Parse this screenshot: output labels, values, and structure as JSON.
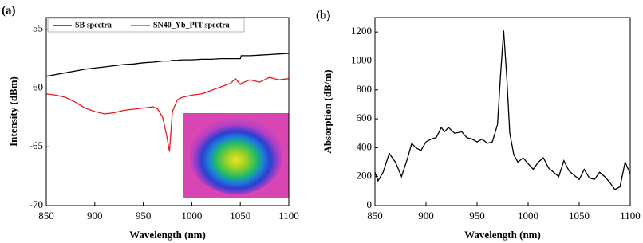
{
  "chart_data": [
    {
      "type": "line",
      "panel_label": "(a)",
      "x_label": "Wavelength (nm)",
      "y_label": "Intensity (dBm)",
      "x": [
        850,
        860,
        870,
        880,
        890,
        900,
        910,
        920,
        930,
        940,
        950,
        960,
        965,
        970,
        974,
        977,
        980,
        985,
        990,
        1000,
        1010,
        1020,
        1030,
        1040,
        1045,
        1050,
        1051,
        1060,
        1070,
        1080,
        1090,
        1100
      ],
      "series": [
        {
          "name": "SB spectra",
          "color": "#000000",
          "values": [
            -59.0,
            -58.85,
            -58.7,
            -58.55,
            -58.4,
            -58.3,
            -58.2,
            -58.1,
            -58.0,
            -57.95,
            -57.85,
            -57.8,
            -57.75,
            -57.7,
            -57.7,
            -57.7,
            -57.65,
            -57.65,
            -57.6,
            -57.6,
            -57.55,
            -57.55,
            -57.5,
            -57.5,
            -57.5,
            -57.5,
            -57.25,
            -57.25,
            -57.2,
            -57.15,
            -57.1,
            -57.05
          ]
        },
        {
          "name": "SN40_Yb_PIT spectra",
          "color": "#e8191e",
          "values": [
            -60.5,
            -60.6,
            -60.8,
            -61.2,
            -61.7,
            -62.0,
            -62.2,
            -62.1,
            -61.9,
            -61.8,
            -61.7,
            -61.6,
            -61.8,
            -62.5,
            -64.0,
            -65.4,
            -62.0,
            -61.0,
            -60.8,
            -60.6,
            -60.5,
            -60.2,
            -59.9,
            -59.6,
            -59.2,
            -59.7,
            -59.6,
            -59.3,
            -59.5,
            -59.1,
            -59.3,
            -59.2
          ]
        }
      ],
      "xlim": [
        850,
        1100
      ],
      "xticks": [
        850,
        900,
        950,
        1000,
        1050,
        1100
      ],
      "ylim": [
        -70,
        -54
      ],
      "yticks": [
        -70,
        -65,
        -60,
        -55
      ],
      "legend": "upper-left"
    },
    {
      "type": "line",
      "panel_label": "(b)",
      "x_label": "Wavelength (nm)",
      "y_label": "Absorption (dB/m)",
      "x": [
        850,
        853,
        858,
        864,
        870,
        876,
        882,
        886,
        890,
        895,
        900,
        905,
        910,
        915,
        918,
        922,
        928,
        935,
        940,
        945,
        950,
        955,
        960,
        965,
        970,
        973,
        976,
        979,
        982,
        986,
        990,
        995,
        1000,
        1005,
        1010,
        1015,
        1020,
        1025,
        1030,
        1035,
        1040,
        1045,
        1050,
        1055,
        1060,
        1065,
        1070,
        1075,
        1080,
        1085,
        1090,
        1095,
        1100
      ],
      "series": [
        {
          "color": "#000000",
          "values": [
            230,
            170,
            230,
            360,
            300,
            200,
            330,
            430,
            400,
            380,
            440,
            460,
            470,
            540,
            510,
            540,
            500,
            510,
            470,
            460,
            440,
            460,
            430,
            440,
            560,
            900,
            1210,
            900,
            500,
            350,
            300,
            330,
            290,
            250,
            300,
            330,
            260,
            230,
            200,
            310,
            240,
            210,
            180,
            250,
            190,
            180,
            230,
            200,
            160,
            110,
            130,
            300,
            220
          ]
        }
      ],
      "xlim": [
        850,
        1100
      ],
      "xticks": [
        850,
        900,
        950,
        1000,
        1050,
        1100
      ],
      "ylim": [
        0,
        1300
      ],
      "yticks": [
        0,
        200,
        400,
        600,
        800,
        1000,
        1200
      ]
    }
  ]
}
